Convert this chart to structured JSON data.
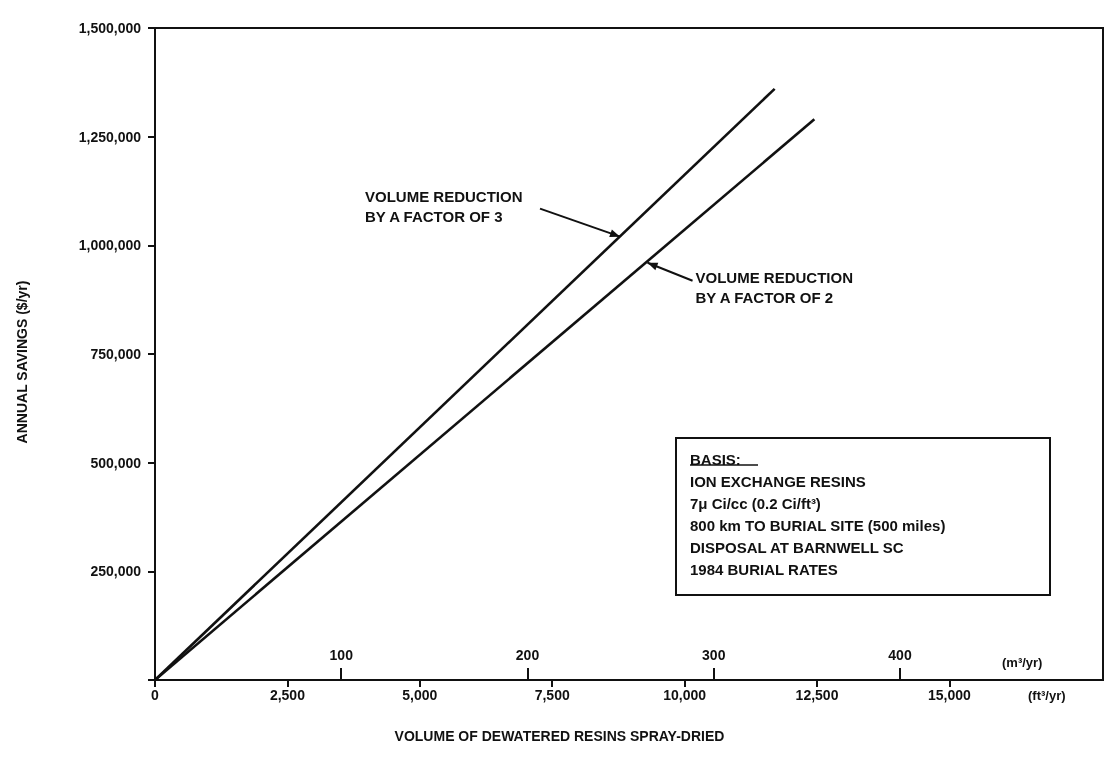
{
  "chart_data": {
    "type": "line",
    "xlabel": "VOLUME OF DEWATERED RESINS SPRAY-DRIED",
    "ylabel": "ANNUAL SAVINGS ($/yr)",
    "x2label": "(m³/yr)",
    "series": [
      {
        "color": "#111111",
        "x": [
          0,
          11700
        ],
        "values": [
          0,
          1360000
        ]
      },
      {
        "color": "#111111",
        "x": [
          0,
          12450
        ],
        "values": [
          0,
          1290000
        ]
      }
    ],
    "xlim": [
      0,
      17900
    ],
    "xticks": [
      0,
      {
        "value": 2500,
        "label": "2,500"
      },
      {
        "value": 5000,
        "label": "5,000"
      },
      {
        "value": 7500,
        "label": "7,500"
      },
      {
        "value": 10000,
        "label": "10,000"
      },
      {
        "value": 12500,
        "label": "12,500"
      },
      {
        "value": 15000,
        "label": "15,000"
      }
    ],
    "x2lim": [
      0,
      509
    ],
    "x2ticks": [
      100,
      200,
      300,
      400
    ],
    "ylim": [
      0,
      1500000
    ],
    "yticks": [
      {
        "value": 0,
        "label": null
      },
      {
        "value": 250000,
        "label": "250,000"
      },
      {
        "value": 500000,
        "label": "500,000"
      },
      {
        "value": 750000,
        "label": "750,000"
      },
      {
        "value": 1000000,
        "label": "1,000,000"
      },
      {
        "value": 1250000,
        "label": "1,250,000"
      },
      {
        "value": 1500000,
        "label": "1,500,000"
      }
    ],
    "annotations": [
      {
        "text": "VOLUME REDUCTION\nBY A FACTOR OF 3",
        "x": 8780,
        "y": 1020000
      },
      {
        "text": "VOLUME REDUCTION\nBY A FACTOR OF 2",
        "x": 9300,
        "y": 960000
      },
      "BASIS:\nION EXCHANGE RESINS\n7μ Ci/cc (0.2 Ci/ft³)\n800 km TO BURIAL SITE (500 miles)\nDISPOSAL AT BARNWELL SC\n1984 BURIAL RATES",
      "(ft³/yr)"
    ],
    "grid": false,
    "marker": "none",
    "line_style": "solid"
  }
}
